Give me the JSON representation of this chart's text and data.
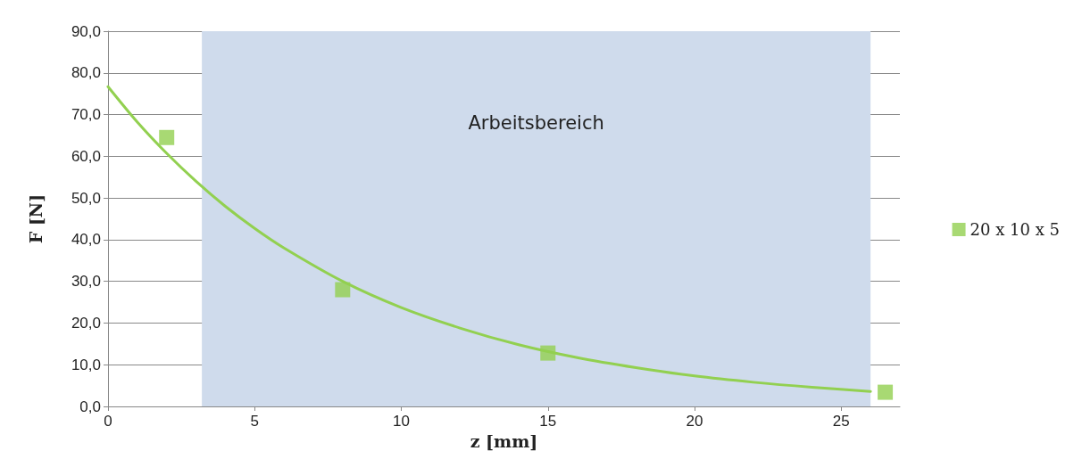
{
  "chart_data": {
    "type": "scatter",
    "xlabel": "z [mm]",
    "ylabel": "F [N]",
    "xlim": [
      0,
      27
    ],
    "xticks": [
      0,
      5,
      10,
      15,
      20,
      25
    ],
    "ylim": [
      0,
      90
    ],
    "yticks": [
      {
        "value": 0,
        "label": "0,0"
      },
      {
        "value": 10,
        "label": "10,0"
      },
      {
        "value": 20,
        "label": "20,0"
      },
      {
        "value": 30,
        "label": "30,0"
      },
      {
        "value": 40,
        "label": "40,0"
      },
      {
        "value": 50,
        "label": "50,0"
      },
      {
        "value": 60,
        "label": "60,0"
      },
      {
        "value": 70,
        "label": "70,0"
      },
      {
        "value": 80,
        "label": "80,0"
      },
      {
        "value": 90,
        "label": "90,0"
      }
    ],
    "grid": "y",
    "legend": "right",
    "marker": "square",
    "bands": [
      {
        "axis": "x",
        "from": 3.2,
        "to": 26,
        "label": "Arbeitsbereich",
        "color": "#cfdbec"
      }
    ],
    "series": [
      {
        "name": "20 x 10 x 5",
        "color": "#92d050",
        "x": [
          2,
          8,
          15,
          26.5
        ],
        "values": [
          64.5,
          28,
          12.8,
          3.4
        ]
      },
      {
        "type": "line",
        "color": "#92d050",
        "marker": "none",
        "line_style": "solid",
        "x": [
          0,
          1,
          2,
          3,
          4,
          5,
          6,
          8,
          10,
          12,
          14,
          16,
          18,
          20,
          22,
          24,
          26
        ],
        "values": [
          76.7,
          68.2,
          60.7,
          54.0,
          48.0,
          42.7,
          38.0,
          30.0,
          23.7,
          18.8,
          14.8,
          11.7,
          9.3,
          7.3,
          5.8,
          4.6,
          3.6
        ]
      }
    ]
  }
}
